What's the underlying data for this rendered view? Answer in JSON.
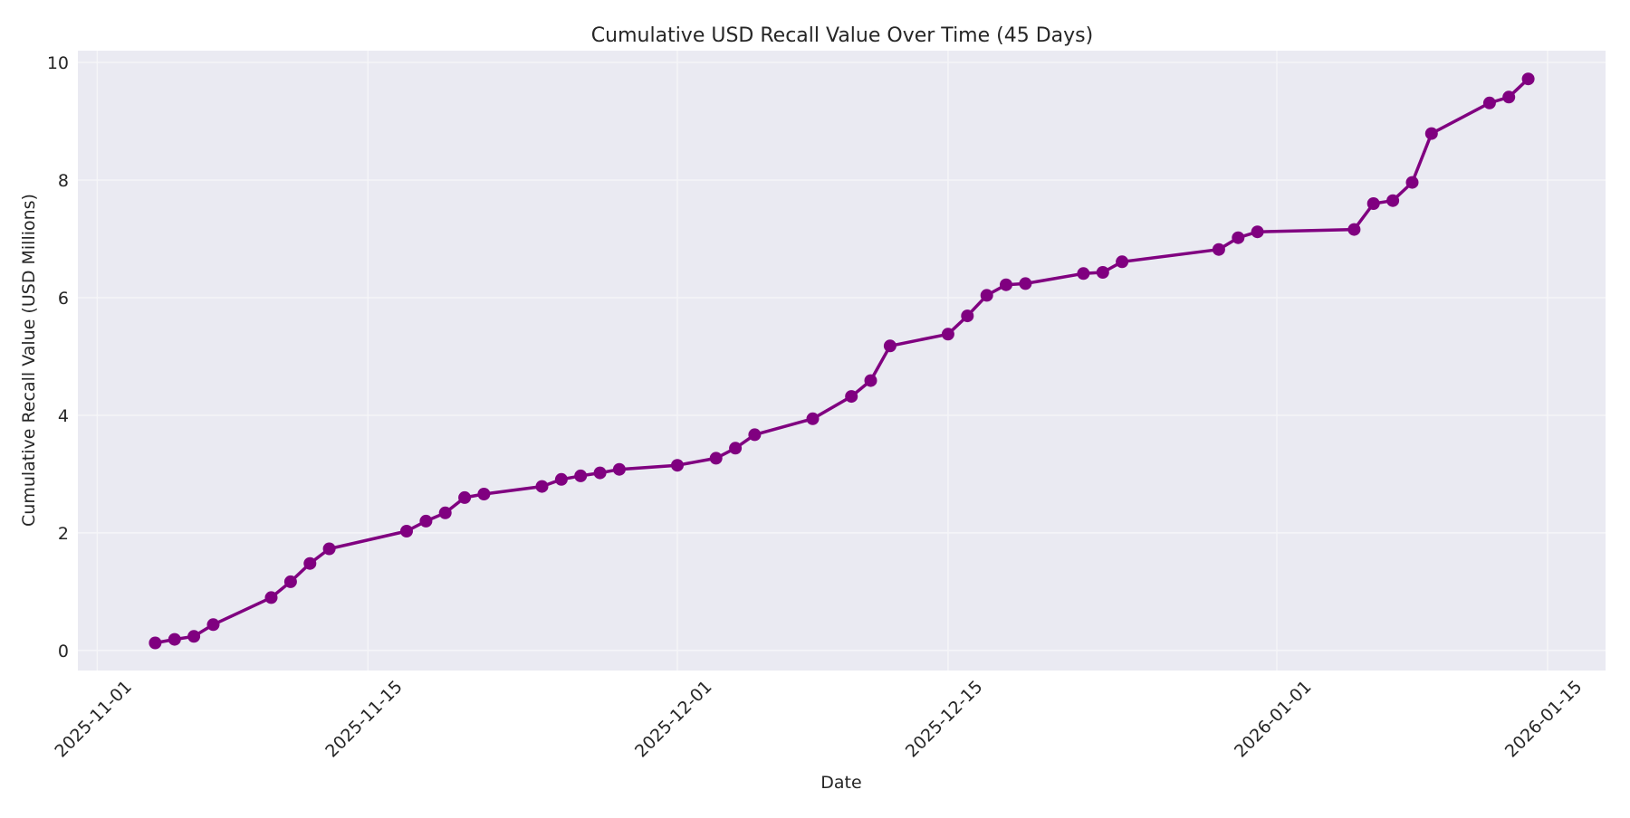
{
  "chart_data": {
    "type": "line",
    "title": "Cumulative USD Recall Value Over Time (45 Days)",
    "xlabel": "Date",
    "ylabel": "Cumulative Recall Value (USD Millions)",
    "x_ticks": [
      "2025-11-01",
      "2025-11-15",
      "2025-12-01",
      "2025-12-15",
      "2026-01-01",
      "2026-01-15"
    ],
    "y_ticks": [
      0,
      2,
      4,
      6,
      8,
      10
    ],
    "xlim": [
      "2025-10-31",
      "2026-01-18"
    ],
    "ylim": [
      -0.34,
      10.2
    ],
    "grid": true,
    "legend": null,
    "style": {
      "background": "#EAEAF2",
      "grid_color": "#F5F5F8",
      "line_color": "#800080",
      "marker": "circle",
      "line_width": 3.5,
      "marker_radius": 7
    },
    "series": [
      {
        "name": "Cumulative Recall Value",
        "x": [
          "2025-11-04",
          "2025-11-05",
          "2025-11-06",
          "2025-11-07",
          "2025-11-10",
          "2025-11-11",
          "2025-11-12",
          "2025-11-13",
          "2025-11-17",
          "2025-11-18",
          "2025-11-19",
          "2025-11-20",
          "2025-11-21",
          "2025-11-24",
          "2025-11-25",
          "2025-11-26",
          "2025-11-27",
          "2025-11-28",
          "2025-12-01",
          "2025-12-03",
          "2025-12-04",
          "2025-12-05",
          "2025-12-08",
          "2025-12-10",
          "2025-12-11",
          "2025-12-12",
          "2025-12-15",
          "2025-12-16",
          "2025-12-17",
          "2025-12-18",
          "2025-12-19",
          "2025-12-22",
          "2025-12-23",
          "2025-12-24",
          "2025-12-29",
          "2025-12-30",
          "2025-12-31",
          "2026-01-05",
          "2026-01-06",
          "2026-01-07",
          "2026-01-08",
          "2026-01-09",
          "2026-01-12",
          "2026-01-13",
          "2026-01-14"
        ],
        "values": [
          0.13,
          0.19,
          0.24,
          0.44,
          0.9,
          1.17,
          1.48,
          1.73,
          2.03,
          2.2,
          2.34,
          2.6,
          2.66,
          2.79,
          2.91,
          2.97,
          3.02,
          3.08,
          3.15,
          3.27,
          3.44,
          3.67,
          3.94,
          4.32,
          4.59,
          5.18,
          5.38,
          5.69,
          6.04,
          6.22,
          6.24,
          6.41,
          6.43,
          6.61,
          6.82,
          7.02,
          7.12,
          7.16,
          7.6,
          7.65,
          7.96,
          8.79,
          9.31,
          9.41,
          9.72
        ]
      }
    ]
  }
}
